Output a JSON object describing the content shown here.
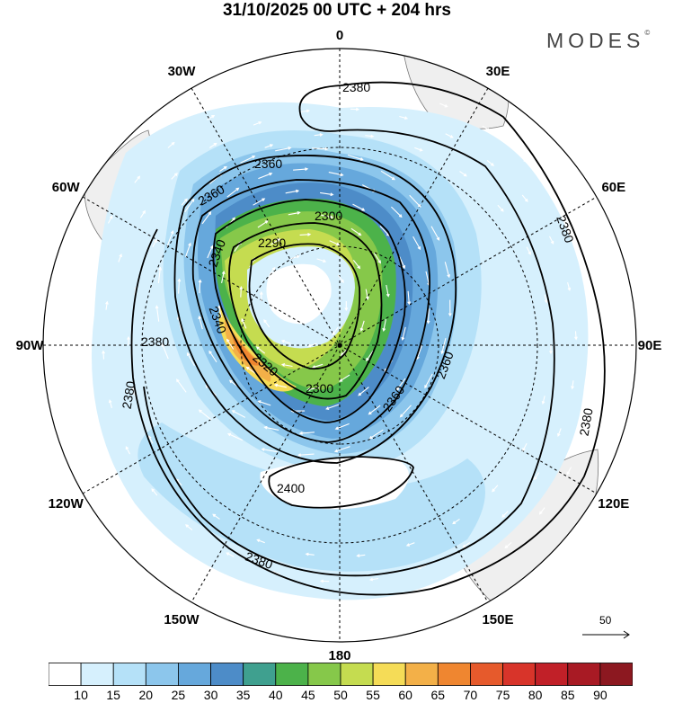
{
  "title": "31/10/2025  00 UTC  + 204 hrs",
  "logo": "MODES",
  "logo_mark": "©",
  "longitude_labels": [
    {
      "text": "0",
      "angle": 0
    },
    {
      "text": "30E",
      "angle": 30
    },
    {
      "text": "60E",
      "angle": 60
    },
    {
      "text": "90E",
      "angle": 90
    },
    {
      "text": "120E",
      "angle": 120
    },
    {
      "text": "150E",
      "angle": 150
    },
    {
      "text": "180",
      "angle": 180
    },
    {
      "text": "150W",
      "angle": 210
    },
    {
      "text": "120W",
      "angle": 240
    },
    {
      "text": "90W",
      "angle": 270
    },
    {
      "text": "60W",
      "angle": 300
    },
    {
      "text": "30W",
      "angle": 330
    }
  ],
  "contour_labels": [
    "2380",
    "2360",
    "2340",
    "2320",
    "2300",
    "2290",
    "2400"
  ],
  "vector_reference": "50",
  "colorbar": {
    "ticks": [
      "10",
      "15",
      "20",
      "25",
      "30",
      "35",
      "40",
      "45",
      "50",
      "55",
      "60",
      "65",
      "70",
      "75",
      "80",
      "85",
      "90"
    ],
    "colors": [
      "#ffffff",
      "#d6f0fd",
      "#b5e1f8",
      "#8cc6ec",
      "#66a8dc",
      "#4d8cc8",
      "#3fa08f",
      "#4cb24a",
      "#86c84a",
      "#c5dc50",
      "#f5dc57",
      "#f3b048",
      "#ef8630",
      "#e65a2c",
      "#d8342a",
      "#c12028",
      "#a81a24",
      "#8c1820"
    ]
  }
}
